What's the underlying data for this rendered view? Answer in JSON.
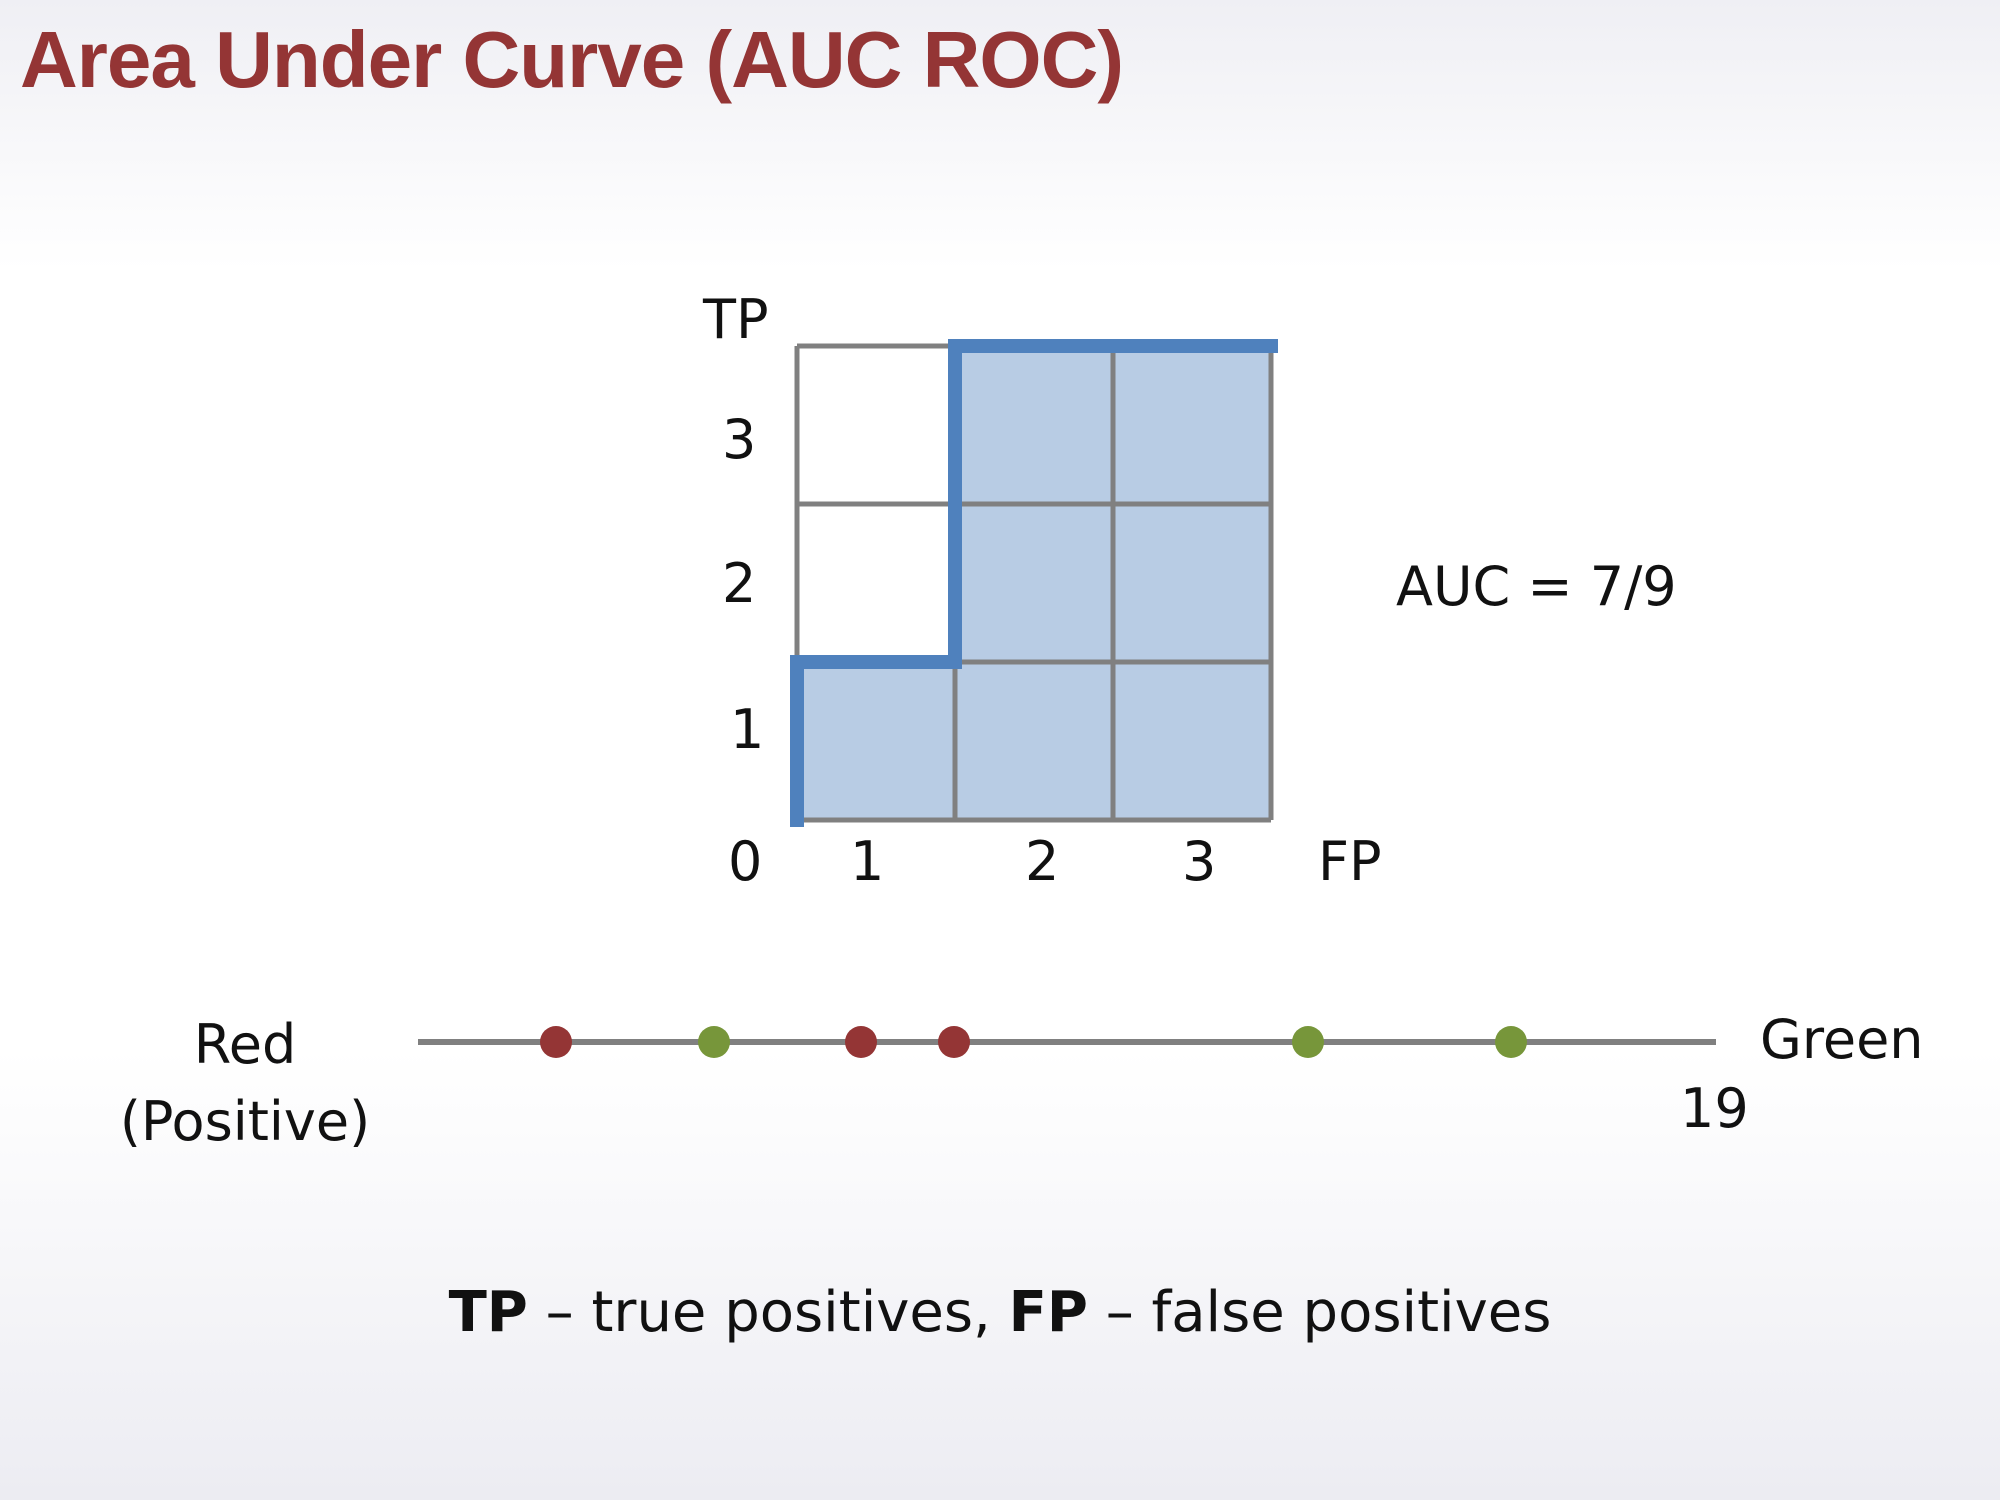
{
  "title": "Area Under Curve (AUC ROC)",
  "roc_plot": {
    "y_axis_label": "TP",
    "x_axis_label": "FP",
    "origin_label": "0",
    "x_ticks": [
      "1",
      "2",
      "3"
    ],
    "y_ticks": [
      "1",
      "2",
      "3"
    ],
    "grid_size": 3,
    "shaded_cells_per_column": [
      1,
      3,
      3
    ],
    "curve_points": [
      [
        0,
        0
      ],
      [
        0,
        1
      ],
      [
        1,
        1
      ],
      [
        1,
        3
      ],
      [
        3,
        3
      ]
    ],
    "auc_label": "AUC = 7/9"
  },
  "ranking_line": {
    "left_label": "Red",
    "left_sublabel": "(Positive)",
    "right_label": "Green",
    "right_value_label": "19",
    "points": [
      {
        "class": "red",
        "position": 1
      },
      {
        "class": "green",
        "position": 2
      },
      {
        "class": "red",
        "position": 3
      },
      {
        "class": "red",
        "position": 4
      },
      {
        "class": "green",
        "position": 5
      },
      {
        "class": "green",
        "position": 6
      }
    ]
  },
  "footnote": {
    "tp_term": "TP",
    "tp_def": " – true positives, ",
    "fp_term": "FP",
    "fp_def": " – false positives"
  },
  "colors": {
    "title": "#943535",
    "red_class": "#943535",
    "green_class": "#77963a",
    "curve": "#4f81bd",
    "shade": "#b8cce4",
    "grid": "#808080",
    "axis_line": "#808080"
  }
}
